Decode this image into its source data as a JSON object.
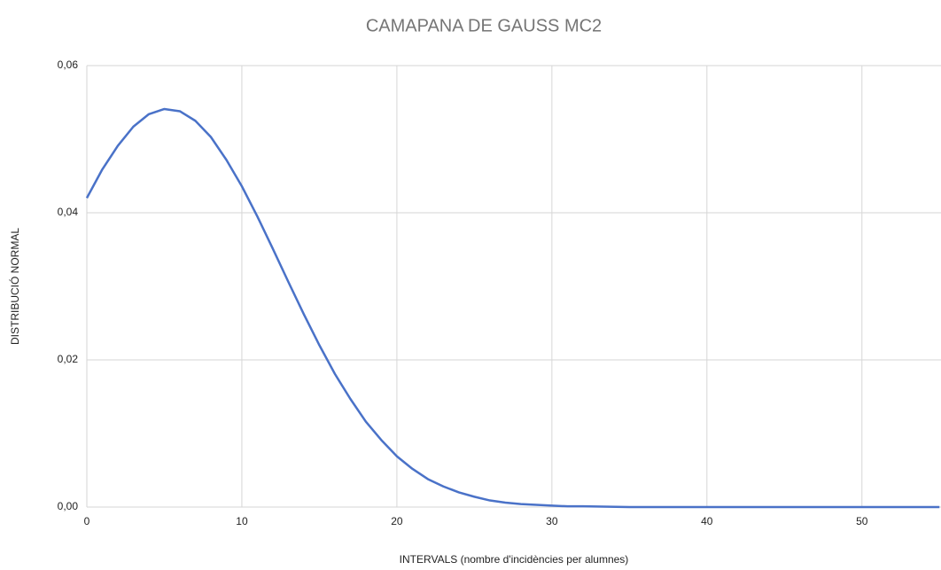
{
  "chart_data": {
    "type": "line",
    "title": "CAMAPANA DE GAUSS MC2",
    "x_label": "INTERVALS (nombre d'incidències per alumnes)",
    "y_label": "DISTRIBUCIÓ NORMAL",
    "x": [
      0,
      1,
      2,
      3,
      4,
      5,
      6,
      7,
      8,
      9,
      10,
      11,
      12,
      13,
      14,
      15,
      16,
      17,
      18,
      19,
      20,
      21,
      22,
      23,
      24,
      25,
      26,
      27,
      28,
      29,
      30,
      31,
      32,
      35,
      40,
      45,
      50,
      55
    ],
    "series": [
      {
        "name": "DISTRIBUCIÓ NORMAL",
        "color": "#4a72c8",
        "values": [
          0.042,
          0.0459,
          0.0491,
          0.0517,
          0.0534,
          0.0541,
          0.0538,
          0.0525,
          0.0503,
          0.0472,
          0.0436,
          0.0395,
          0.0351,
          0.0306,
          0.0262,
          0.022,
          0.0181,
          0.0147,
          0.0116,
          0.0091,
          0.0069,
          0.0052,
          0.0038,
          0.0028,
          0.002,
          0.0014,
          0.0009,
          0.0006,
          0.0004,
          0.0003,
          0.0002,
          0.0001,
          0.0001,
          0,
          0,
          0,
          0,
          0
        ]
      }
    ],
    "xlim": [
      0,
      55.1
    ],
    "xticks": [
      0,
      10,
      20,
      30,
      40,
      50
    ],
    "ylim": [
      0,
      0.06
    ],
    "yticks": [
      {
        "value": 0,
        "label": "0,00"
      },
      {
        "value": 0.02,
        "label": "0,02"
      },
      {
        "value": 0.04,
        "label": "0,04"
      },
      {
        "value": 0.06,
        "label": "0,06"
      }
    ],
    "grid": true
  }
}
